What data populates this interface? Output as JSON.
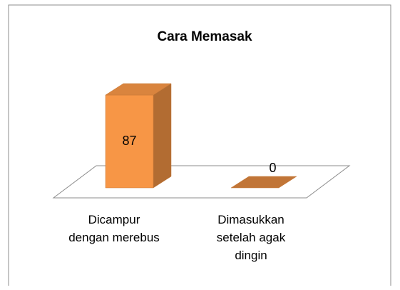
{
  "chart_data": {
    "type": "bar3d",
    "title": "Cara Memasak",
    "categories": [
      "Dicampur dengan merebus",
      "Dimasukkan setelah agak dingin"
    ],
    "values": [
      87,
      0
    ],
    "color": "#f79646"
  }
}
